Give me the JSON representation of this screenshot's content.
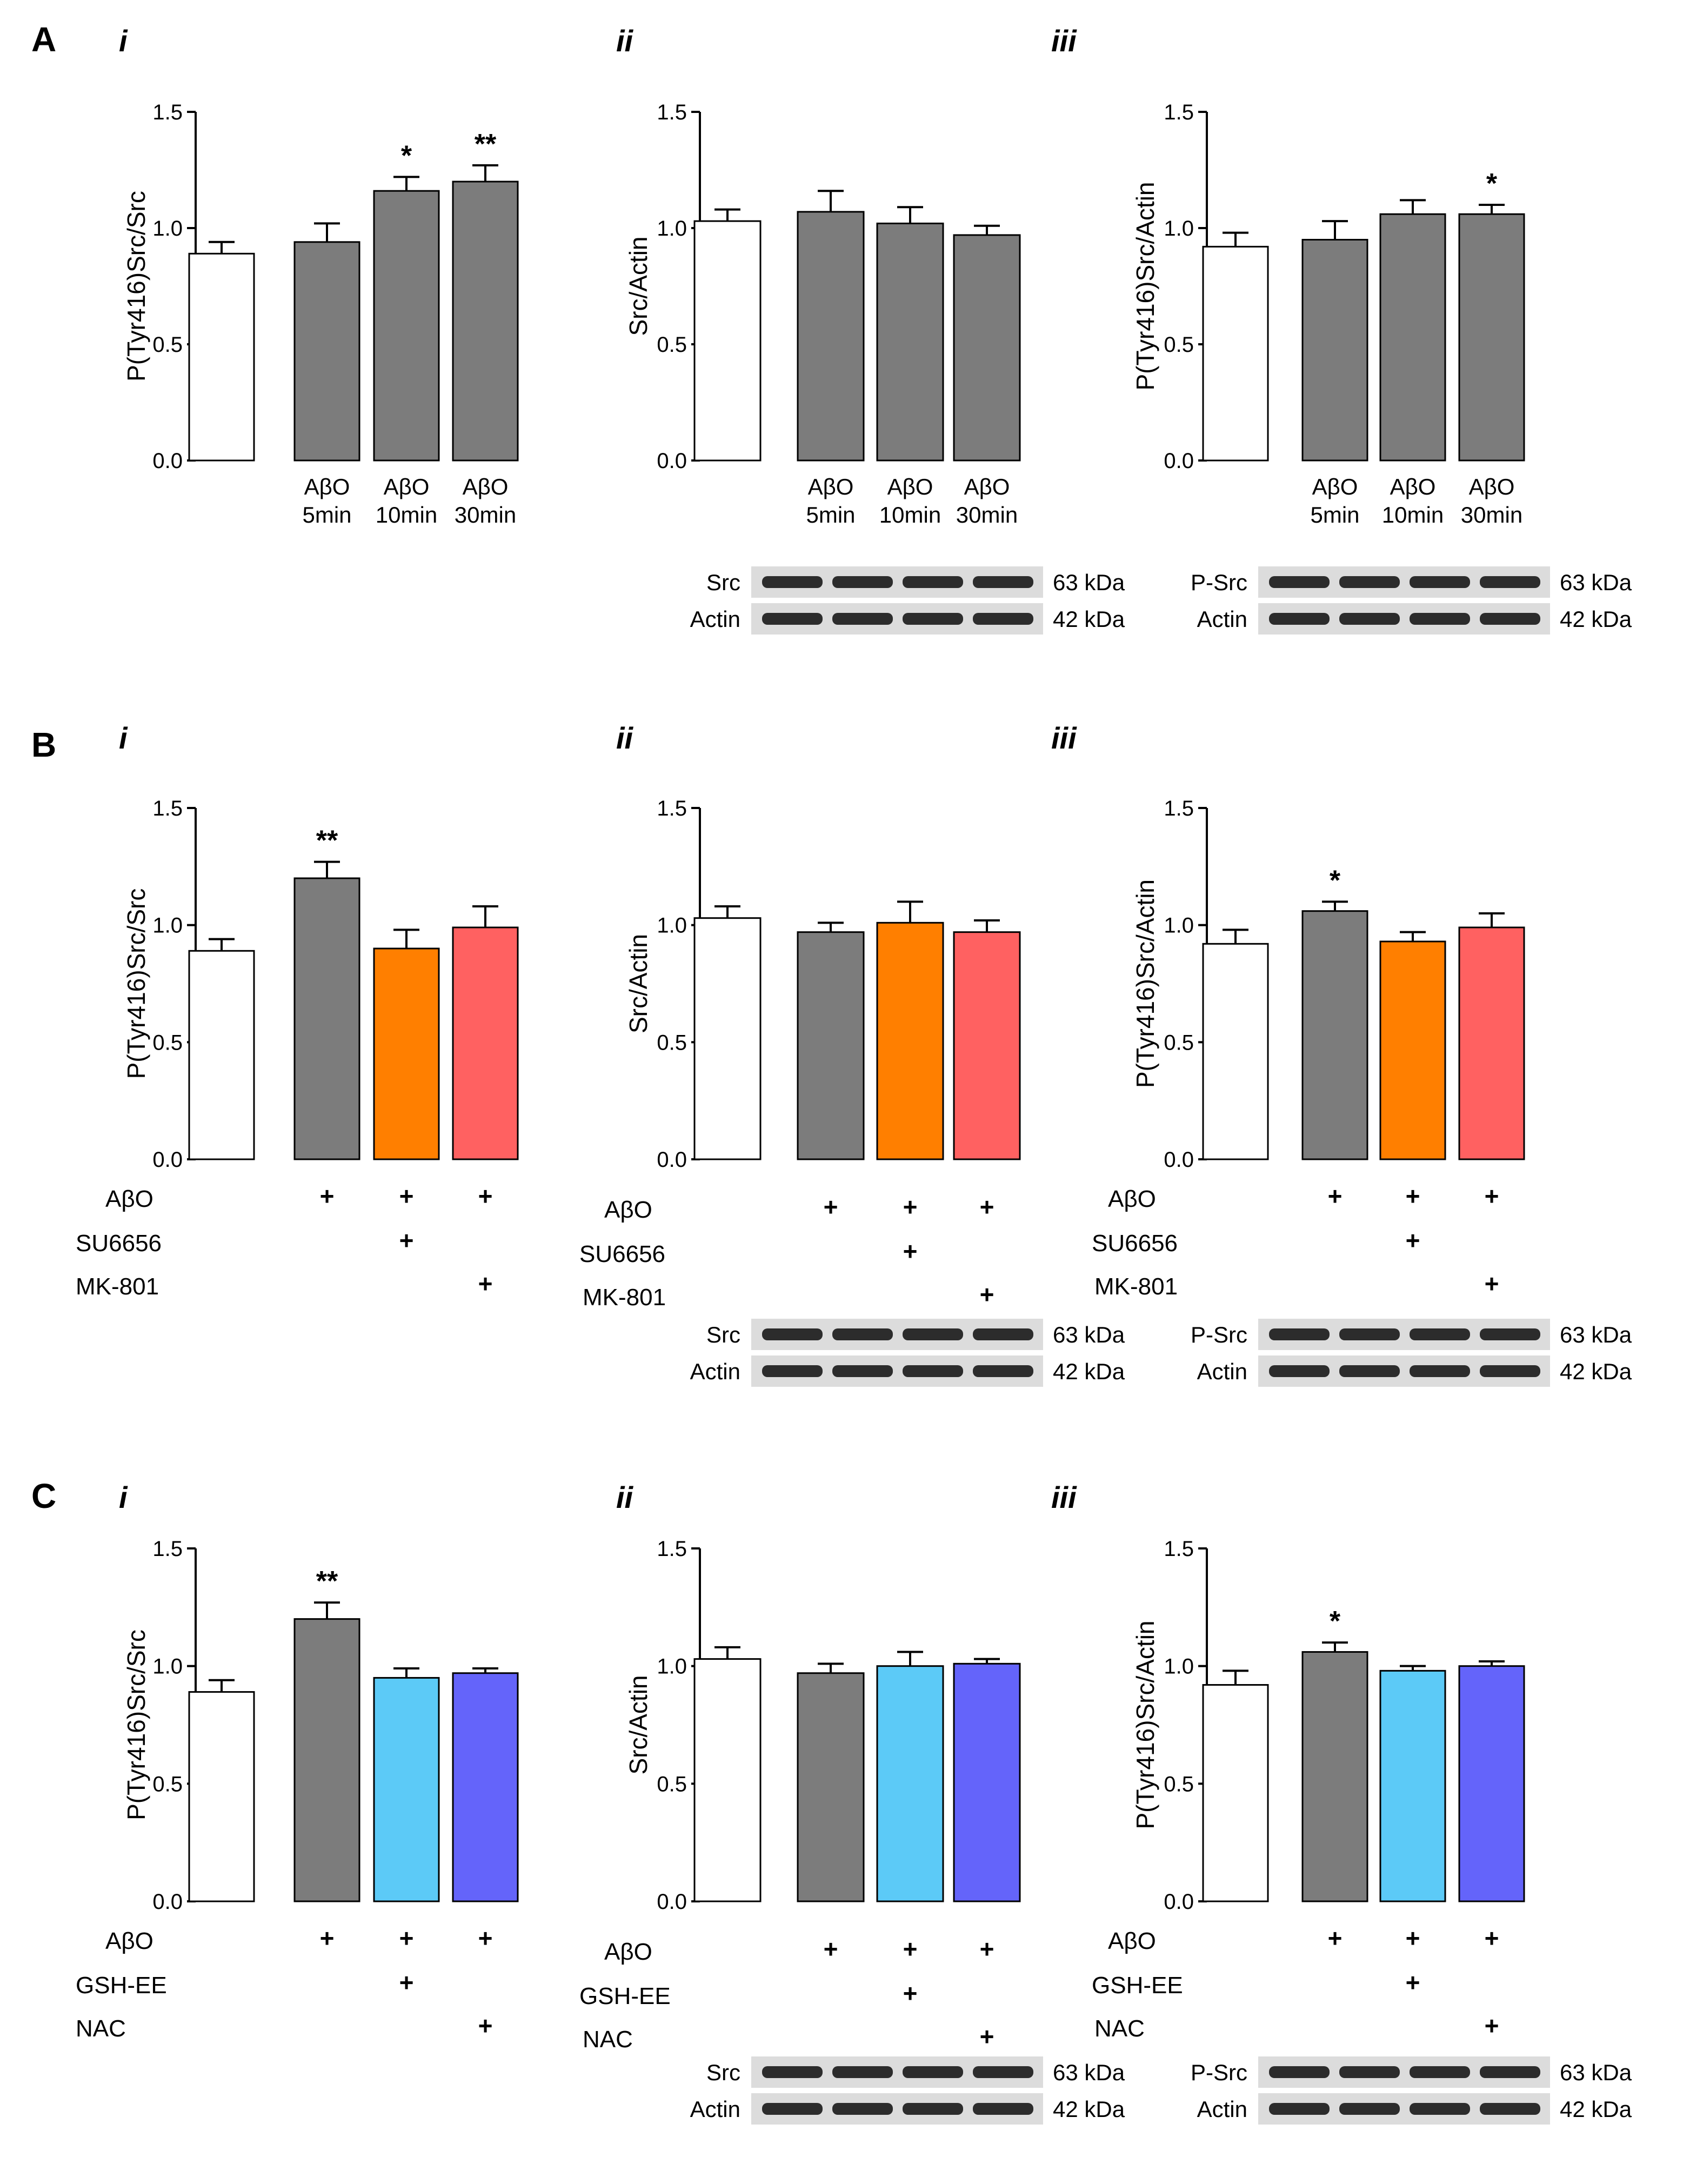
{
  "colors": {
    "control": "#ffffff",
    "abo": "#7c7c7c",
    "su6656": "#ff7f00",
    "mk801": "#ff6161",
    "gsh_ee": "#5ccaf7",
    "nac": "#6464fa",
    "blot_bg": "#dcdcdc",
    "blot_band": "#181818"
  },
  "panels": [
    {
      "letter": "A",
      "kind": "time",
      "row_labels": [],
      "charts": [
        {
          "sub": "i",
          "ylabel": "P(Tyr416)Src/Src",
          "yticks": [
            "0.0",
            "0.5",
            "1.0",
            "1.5"
          ],
          "categories": [
            "",
            "AβO\n5min",
            "AβO\n10min",
            "AβO\n30min"
          ],
          "values": [
            0.89,
            0.94,
            1.16,
            1.2
          ],
          "errors": [
            0.05,
            0.08,
            0.06,
            0.07
          ],
          "stars": [
            "",
            "",
            "*",
            "**"
          ],
          "colors": [
            "control",
            "abo",
            "abo",
            "abo"
          ]
        },
        {
          "sub": "ii",
          "ylabel": "Src/Actin",
          "yticks": [
            "0.0",
            "0.5",
            "1.0",
            "1.5"
          ],
          "categories": [
            "",
            "AβO\n5min",
            "AβO\n10min",
            "AβO\n30min"
          ],
          "values": [
            1.03,
            1.07,
            1.02,
            0.97
          ],
          "errors": [
            0.05,
            0.09,
            0.07,
            0.04
          ],
          "stars": [
            "",
            "",
            "",
            ""
          ],
          "colors": [
            "control",
            "abo",
            "abo",
            "abo"
          ]
        },
        {
          "sub": "iii",
          "ylabel": "P(Tyr416)Src/Actin",
          "yticks": [
            "0.0",
            "0.5",
            "1.0",
            "1.5"
          ],
          "categories": [
            "",
            "AβO\n5min",
            "AβO\n10min",
            "AβO\n30min"
          ],
          "values": [
            0.92,
            0.95,
            1.06,
            1.06
          ],
          "errors": [
            0.06,
            0.08,
            0.06,
            0.04
          ],
          "stars": [
            "",
            "",
            "",
            "*"
          ],
          "colors": [
            "control",
            "abo",
            "abo",
            "abo"
          ]
        }
      ],
      "blots": [
        {
          "rows": [
            {
              "label": "Src",
              "kda": "63 kDa"
            },
            {
              "label": "Actin",
              "kda": "42 kDa"
            }
          ]
        },
        {
          "rows": [
            {
              "label": "P-Src",
              "kda": "63 kDa"
            },
            {
              "label": "Actin",
              "kda": "42 kDa"
            }
          ]
        }
      ]
    },
    {
      "letter": "B",
      "kind": "treat",
      "row_labels": [
        "AβO",
        "SU6656",
        "MK-801"
      ],
      "matrix": [
        [
          "",
          "+",
          "+",
          "+"
        ],
        [
          "",
          "",
          "+",
          ""
        ],
        [
          "",
          "",
          "",
          "+"
        ]
      ],
      "charts": [
        {
          "sub": "i",
          "ylabel": "P(Tyr416)Src/Src",
          "yticks": [
            "0.0",
            "0.5",
            "1.0",
            "1.5"
          ],
          "values": [
            0.89,
            1.2,
            0.9,
            0.99
          ],
          "errors": [
            0.05,
            0.07,
            0.08,
            0.09
          ],
          "stars": [
            "",
            "**",
            "",
            ""
          ],
          "colors": [
            "control",
            "abo",
            "su6656",
            "mk801"
          ]
        },
        {
          "sub": "ii",
          "ylabel": "Src/Actin",
          "yticks": [
            "0.0",
            "0.5",
            "1.0",
            "1.5"
          ],
          "values": [
            1.03,
            0.97,
            1.01,
            0.97
          ],
          "errors": [
            0.05,
            0.04,
            0.09,
            0.05
          ],
          "stars": [
            "",
            "",
            "",
            ""
          ],
          "colors": [
            "control",
            "abo",
            "su6656",
            "mk801"
          ]
        },
        {
          "sub": "iii",
          "ylabel": "P(Tyr416)Src/Actin",
          "yticks": [
            "0.0",
            "0.5",
            "1.0",
            "1.5"
          ],
          "values": [
            0.92,
            1.06,
            0.93,
            0.99
          ],
          "errors": [
            0.06,
            0.04,
            0.04,
            0.06
          ],
          "stars": [
            "",
            "*",
            "",
            ""
          ],
          "colors": [
            "control",
            "abo",
            "su6656",
            "mk801"
          ]
        }
      ],
      "blots": [
        {
          "rows": [
            {
              "label": "Src",
              "kda": "63 kDa"
            },
            {
              "label": "Actin",
              "kda": "42 kDa"
            }
          ]
        },
        {
          "rows": [
            {
              "label": "P-Src",
              "kda": "63 kDa"
            },
            {
              "label": "Actin",
              "kda": "42 kDa"
            }
          ]
        }
      ]
    },
    {
      "letter": "C",
      "kind": "treat",
      "row_labels": [
        "AβO",
        "GSH-EE",
        "NAC"
      ],
      "matrix": [
        [
          "",
          "+",
          "+",
          "+"
        ],
        [
          "",
          "",
          "+",
          ""
        ],
        [
          "",
          "",
          "",
          "+"
        ]
      ],
      "charts": [
        {
          "sub": "i",
          "ylabel": "P(Tyr416)Src/Src",
          "yticks": [
            "0.0",
            "0.5",
            "1.0",
            "1.5"
          ],
          "values": [
            0.89,
            1.2,
            0.95,
            0.97
          ],
          "errors": [
            0.05,
            0.07,
            0.04,
            0.02
          ],
          "stars": [
            "",
            "**",
            "",
            ""
          ],
          "colors": [
            "control",
            "abo",
            "gsh_ee",
            "nac"
          ]
        },
        {
          "sub": "ii",
          "ylabel": "Src/Actin",
          "yticks": [
            "0.0",
            "0.5",
            "1.0",
            "1.5"
          ],
          "values": [
            1.03,
            0.97,
            1.0,
            1.01
          ],
          "errors": [
            0.05,
            0.04,
            0.06,
            0.02
          ],
          "stars": [
            "",
            "",
            "",
            ""
          ],
          "colors": [
            "control",
            "abo",
            "gsh_ee",
            "nac"
          ]
        },
        {
          "sub": "iii",
          "ylabel": "P(Tyr416)Src/Actin",
          "yticks": [
            "0.0",
            "0.5",
            "1.0",
            "1.5"
          ],
          "values": [
            0.92,
            1.06,
            0.98,
            1.0
          ],
          "errors": [
            0.06,
            0.04,
            0.02,
            0.02
          ],
          "stars": [
            "",
            "*",
            "",
            ""
          ],
          "colors": [
            "control",
            "abo",
            "gsh_ee",
            "nac"
          ]
        }
      ],
      "blots": [
        {
          "rows": [
            {
              "label": "Src",
              "kda": "63 kDa"
            },
            {
              "label": "Actin",
              "kda": "42 kDa"
            }
          ]
        },
        {
          "rows": [
            {
              "label": "P-Src",
              "kda": "63 kDa"
            },
            {
              "label": "Actin",
              "kda": "42 kDa"
            }
          ]
        }
      ]
    }
  ],
  "chart_data": [
    {
      "type": "bar",
      "panel": "A",
      "sub": "i",
      "ylabel": "P(Tyr416)Src/Src",
      "ylim": [
        0,
        1.5
      ],
      "categories": [
        "",
        "AβO 5min",
        "AβO 10min",
        "AβO 30min"
      ],
      "values": [
        0.89,
        0.94,
        1.16,
        1.2
      ],
      "errors": [
        0.05,
        0.08,
        0.06,
        0.07
      ],
      "significance": [
        "",
        "",
        "*",
        "**"
      ]
    },
    {
      "type": "bar",
      "panel": "A",
      "sub": "ii",
      "ylabel": "Src/Actin",
      "ylim": [
        0,
        1.5
      ],
      "categories": [
        "",
        "AβO 5min",
        "AβO 10min",
        "AβO 30min"
      ],
      "values": [
        1.03,
        1.07,
        1.02,
        0.97
      ],
      "errors": [
        0.05,
        0.09,
        0.07,
        0.04
      ],
      "significance": [
        "",
        "",
        "",
        ""
      ]
    },
    {
      "type": "bar",
      "panel": "A",
      "sub": "iii",
      "ylabel": "P(Tyr416)Src/Actin",
      "ylim": [
        0,
        1.5
      ],
      "categories": [
        "",
        "AβO 5min",
        "AβO 10min",
        "AβO 30min"
      ],
      "values": [
        0.92,
        0.95,
        1.06,
        1.06
      ],
      "errors": [
        0.06,
        0.08,
        0.06,
        0.04
      ],
      "significance": [
        "",
        "",
        "",
        "*"
      ]
    },
    {
      "type": "bar",
      "panel": "B",
      "sub": "i",
      "ylabel": "P(Tyr416)Src/Src",
      "ylim": [
        0,
        1.5
      ],
      "values": [
        0.89,
        1.2,
        0.9,
        0.99
      ],
      "errors": [
        0.05,
        0.07,
        0.08,
        0.09
      ],
      "significance": [
        "",
        "**",
        "",
        ""
      ]
    },
    {
      "type": "bar",
      "panel": "B",
      "sub": "ii",
      "ylabel": "Src/Actin",
      "ylim": [
        0,
        1.5
      ],
      "values": [
        1.03,
        0.97,
        1.01,
        0.97
      ],
      "errors": [
        0.05,
        0.04,
        0.09,
        0.05
      ],
      "significance": [
        "",
        "",
        "",
        ""
      ]
    },
    {
      "type": "bar",
      "panel": "B",
      "sub": "iii",
      "ylabel": "P(Tyr416)Src/Actin",
      "ylim": [
        0,
        1.5
      ],
      "values": [
        0.92,
        1.06,
        0.93,
        0.99
      ],
      "errors": [
        0.06,
        0.04,
        0.04,
        0.06
      ],
      "significance": [
        "",
        "*",
        "",
        ""
      ]
    },
    {
      "type": "bar",
      "panel": "C",
      "sub": "i",
      "ylabel": "P(Tyr416)Src/Src",
      "ylim": [
        0,
        1.5
      ],
      "values": [
        0.89,
        1.2,
        0.95,
        0.97
      ],
      "errors": [
        0.05,
        0.07,
        0.04,
        0.02
      ],
      "significance": [
        "",
        "**",
        "",
        ""
      ]
    },
    {
      "type": "bar",
      "panel": "C",
      "sub": "ii",
      "ylabel": "Src/Actin",
      "ylim": [
        0,
        1.5
      ],
      "values": [
        1.03,
        0.97,
        1.0,
        1.01
      ],
      "errors": [
        0.05,
        0.04,
        0.06,
        0.02
      ],
      "significance": [
        "",
        "",
        "",
        ""
      ]
    },
    {
      "type": "bar",
      "panel": "C",
      "sub": "iii",
      "ylabel": "P(Tyr416)Src/Actin",
      "ylim": [
        0,
        1.5
      ],
      "values": [
        0.92,
        1.06,
        0.98,
        1.0
      ],
      "errors": [
        0.06,
        0.04,
        0.02,
        0.02
      ],
      "significance": [
        "",
        "*",
        "",
        ""
      ]
    }
  ]
}
